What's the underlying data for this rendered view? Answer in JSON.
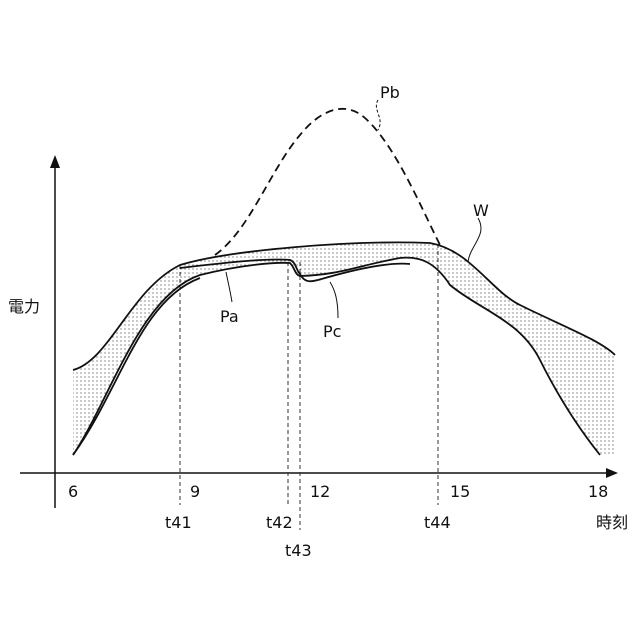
{
  "axes": {
    "y_label": "電力",
    "x_label": "時刻",
    "x_ticks": [
      "6",
      "9",
      "12",
      "15",
      "18"
    ]
  },
  "markers": [
    "t41",
    "t42",
    "t43",
    "t44"
  ],
  "curves": {
    "pb": "Pb",
    "w": "W",
    "pa": "Pa",
    "pc": "Pc"
  }
}
